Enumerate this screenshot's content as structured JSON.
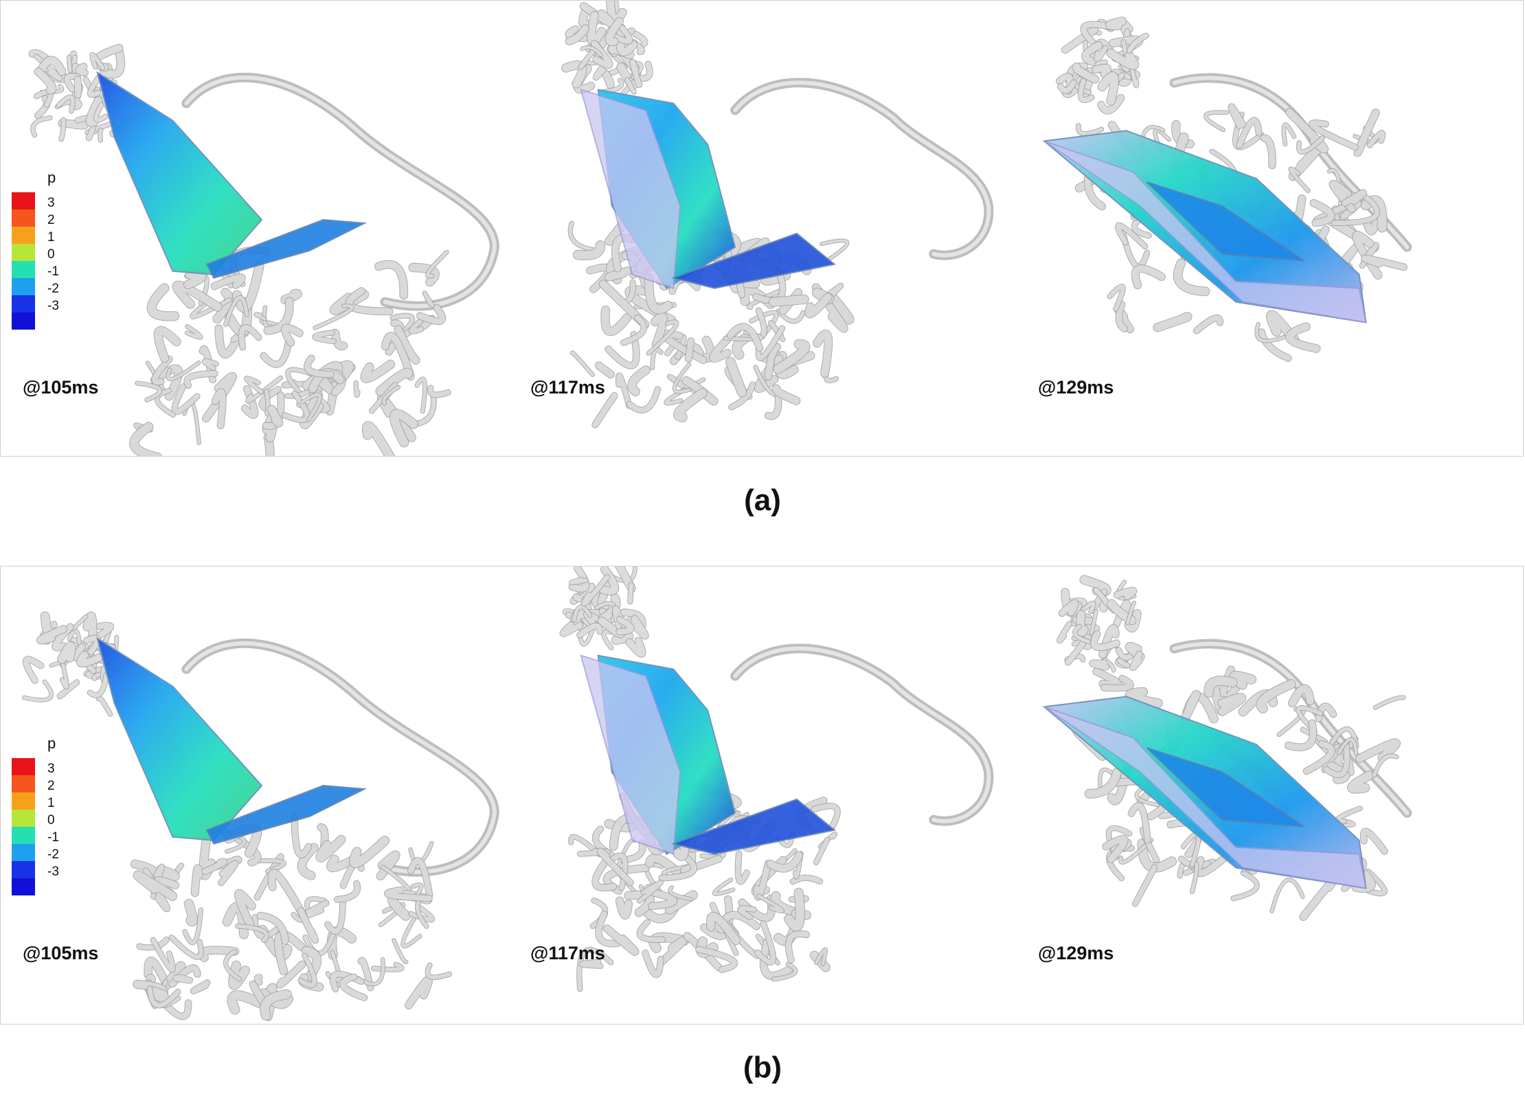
{
  "figure": {
    "panels": [
      {
        "caption": "(a)",
        "legend": {
          "title": "p",
          "ticks": [
            "3",
            "2",
            "1",
            "0",
            "-1",
            "-2",
            "-3"
          ],
          "colors": [
            "#e8141a",
            "#f5561b",
            "#f6a11c",
            "#b6e63a",
            "#24e0b0",
            "#1f9ff0",
            "#1833e6",
            "#1010d8"
          ]
        },
        "frames": [
          {
            "time": "@105ms"
          },
          {
            "time": "@117ms"
          },
          {
            "time": "@129ms"
          }
        ]
      },
      {
        "caption": "(b)",
        "legend": {
          "title": "p",
          "ticks": [
            "3",
            "2",
            "1",
            "0",
            "-1",
            "-2",
            "-3"
          ],
          "colors": [
            "#e8141a",
            "#f5561b",
            "#f6a11c",
            "#b6e63a",
            "#24e0b0",
            "#1f9ff0",
            "#1833e6",
            "#1010d8"
          ]
        },
        "frames": [
          {
            "time": "@105ms"
          },
          {
            "time": "@117ms"
          },
          {
            "time": "@129ms"
          }
        ]
      }
    ]
  }
}
